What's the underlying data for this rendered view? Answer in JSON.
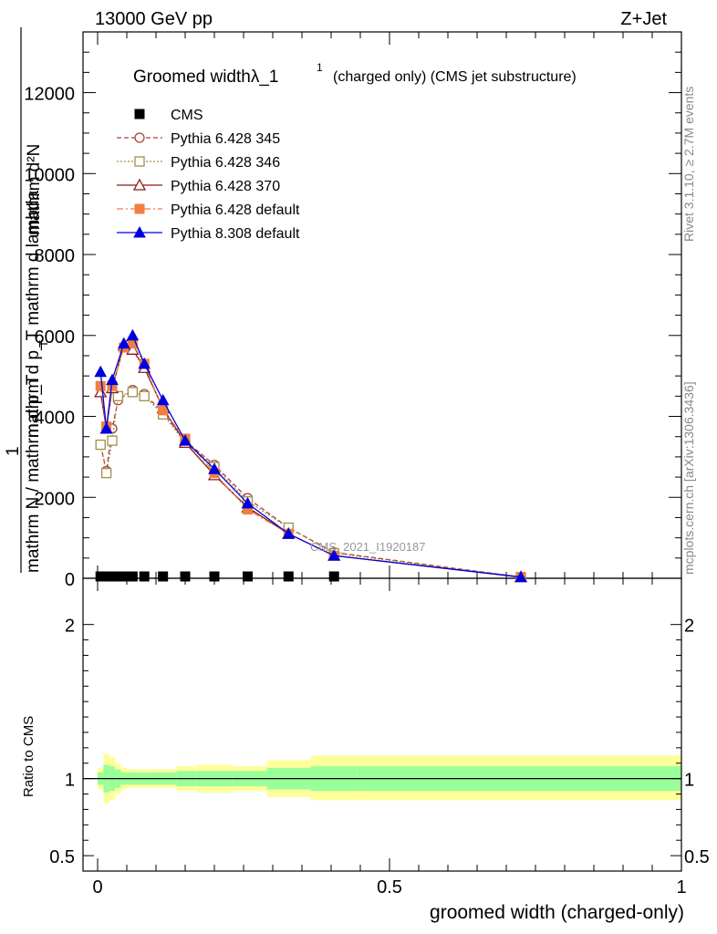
{
  "header": {
    "left": "13000 GeV pp",
    "right": "Z+Jet"
  },
  "side_labels": {
    "rivet": "Rivet 3.1.10, ≥ 2.7M events",
    "mcplots": "mcplots.cern.ch [arXiv:1306.3436]"
  },
  "watermark": "CMS_2021_I1920187",
  "chart_data": [
    {
      "type": "line",
      "title": "Groomed widthλ_1",
      "title_sup": "1",
      "subtitle": "(charged only) (CMS jet substructure)",
      "ylabel_numerator": "mathrm d²N",
      "ylabel_denominator": "mathrm d p_T mathrm d lambda",
      "ylabel_sub": "T",
      "ylabel_ratio_num": "1",
      "ylabel_ratio_den": "mathrm N / mathrm d p_T",
      "xlim": [
        -0.025,
        1.0
      ],
      "ylim": [
        0,
        13500
      ],
      "yticks": [
        0,
        2000,
        4000,
        6000,
        8000,
        10000,
        12000
      ],
      "ytick_labels": [
        "0",
        "2000",
        "4000",
        "6000",
        "8000",
        "10000",
        "12000"
      ],
      "legend_position": "top-left",
      "series": [
        {
          "name": "CMS",
          "color": "#000000",
          "marker": "square-filled",
          "x": [
            0.005,
            0.015,
            0.025,
            0.035,
            0.045,
            0.06,
            0.08,
            0.112,
            0.15,
            0.2,
            0.257,
            0.327,
            0.405
          ],
          "y": [
            0,
            0,
            0,
            0,
            0,
            0,
            0,
            0,
            0,
            0,
            0,
            0,
            0
          ]
        },
        {
          "name": "Pythia 6.428 345",
          "color": "#b03c3c",
          "marker": "circle-open",
          "dash": "5,3",
          "x": [
            0.005,
            0.015,
            0.025,
            0.035,
            0.06,
            0.08,
            0.112,
            0.15,
            0.2,
            0.257,
            0.327,
            0.405,
            0.725
          ],
          "y": [
            3300,
            2650,
            3700,
            4400,
            4650,
            4550,
            4100,
            3400,
            2800,
            1980,
            1250,
            640,
            30
          ]
        },
        {
          "name": "Pythia 6.428 346",
          "color": "#a0904a",
          "marker": "square-open",
          "dash": "2,2",
          "x": [
            0.005,
            0.015,
            0.025,
            0.035,
            0.06,
            0.08,
            0.112,
            0.15,
            0.2,
            0.257,
            0.327,
            0.405,
            0.725
          ],
          "y": [
            3300,
            2600,
            3400,
            4500,
            4600,
            4500,
            4050,
            3350,
            2750,
            1900,
            1250,
            620,
            30
          ]
        },
        {
          "name": "Pythia 6.428 370",
          "color": "#8b1a1a",
          "marker": "triangle-open",
          "dash": "",
          "x": [
            0.005,
            0.015,
            0.025,
            0.045,
            0.06,
            0.08,
            0.112,
            0.15,
            0.2,
            0.257,
            0.327,
            0.405,
            0.725
          ],
          "y": [
            4600,
            3700,
            4700,
            5750,
            5650,
            5200,
            4200,
            3350,
            2550,
            1750,
            1100,
            560,
            30
          ]
        },
        {
          "name": "Pythia 6.428 default",
          "color": "#f08040",
          "marker": "square-filled",
          "dash": "7,3,2,3",
          "x": [
            0.005,
            0.015,
            0.025,
            0.045,
            0.06,
            0.08,
            0.112,
            0.15,
            0.2,
            0.257,
            0.327,
            0.405,
            0.725
          ],
          "y": [
            4750,
            3750,
            4750,
            5700,
            5800,
            5300,
            4150,
            3450,
            2600,
            1700,
            1100,
            560,
            30
          ]
        },
        {
          "name": "Pythia 8.308 default",
          "color": "#0000dd",
          "marker": "triangle-filled",
          "dash": "",
          "x": [
            0.005,
            0.015,
            0.025,
            0.045,
            0.06,
            0.08,
            0.112,
            0.15,
            0.2,
            0.257,
            0.327,
            0.405,
            0.725
          ],
          "y": [
            5100,
            3700,
            4900,
            5800,
            6000,
            5300,
            4400,
            3400,
            2700,
            1850,
            1100,
            560,
            30
          ]
        }
      ]
    },
    {
      "type": "area",
      "xlabel": "groomed width (charged-only)",
      "ylabel": "Ratio to CMS",
      "xlim": [
        -0.025,
        1.0
      ],
      "ylim": [
        0.4,
        2.3
      ],
      "xticks": [
        0,
        0.5,
        1
      ],
      "xtick_labels": [
        "0",
        "0.5",
        "1"
      ],
      "yticks": [
        0.5,
        1,
        2
      ],
      "ytick_labels": [
        "0.5",
        "1",
        "2"
      ],
      "reference": 1,
      "bands": {
        "edges": [
          0,
          0.01,
          0.02,
          0.03,
          0.04,
          0.05,
          0.07,
          0.09,
          0.135,
          0.17,
          0.23,
          0.29,
          0.365,
          0.445,
          1.0
        ],
        "yellow_low": [
          0.93,
          0.84,
          0.86,
          0.9,
          0.93,
          0.94,
          0.94,
          0.94,
          0.92,
          0.91,
          0.92,
          0.88,
          0.86,
          0.86
        ],
        "yellow_high": [
          1.07,
          1.16,
          1.14,
          1.1,
          1.07,
          1.06,
          1.06,
          1.06,
          1.08,
          1.09,
          1.08,
          1.12,
          1.15,
          1.15
        ],
        "green_low": [
          0.96,
          0.91,
          0.92,
          0.94,
          0.96,
          0.96,
          0.96,
          0.96,
          0.95,
          0.95,
          0.95,
          0.93,
          0.92,
          0.92
        ],
        "green_high": [
          1.04,
          1.09,
          1.08,
          1.06,
          1.04,
          1.04,
          1.04,
          1.04,
          1.05,
          1.05,
          1.05,
          1.07,
          1.08,
          1.08
        ]
      }
    }
  ]
}
